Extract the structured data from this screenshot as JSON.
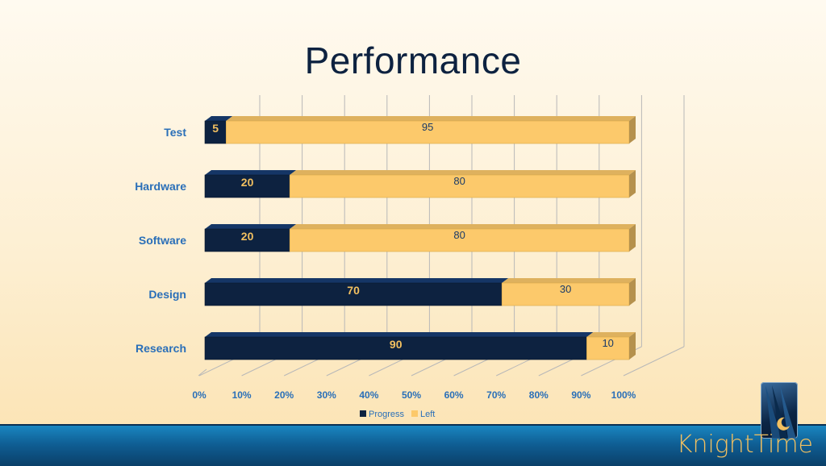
{
  "slide": {
    "title": "Performance",
    "brand": "KnightTime"
  },
  "colors": {
    "progress": "#0d2240",
    "left": "#fcc96b",
    "axis_label": "#2a6fb8",
    "title": "#0d2240",
    "brand": "#f2c060"
  },
  "chart_data": {
    "type": "bar",
    "orientation": "horizontal",
    "stacked": "percent",
    "categories": [
      "Test",
      "Hardware",
      "Software",
      "Design",
      "Research"
    ],
    "series": [
      {
        "name": "Progress",
        "values": [
          5,
          20,
          20,
          70,
          90
        ]
      },
      {
        "name": "Left",
        "values": [
          95,
          80,
          80,
          30,
          10
        ]
      }
    ],
    "x_ticks": [
      "0%",
      "10%",
      "20%",
      "30%",
      "40%",
      "50%",
      "60%",
      "70%",
      "80%",
      "90%",
      "100%"
    ],
    "xlim": [
      0,
      100
    ],
    "grid": "vertical",
    "legend": "bottom",
    "style": "3d"
  }
}
